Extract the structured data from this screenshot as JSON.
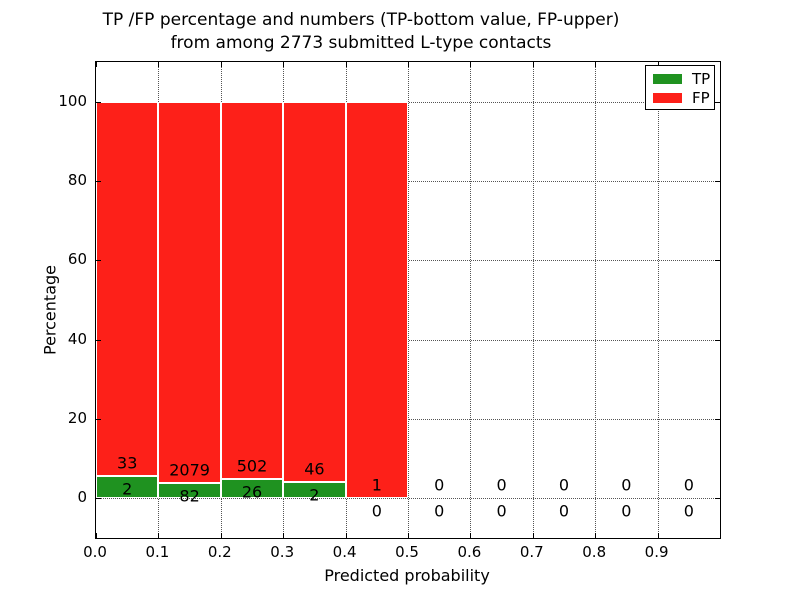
{
  "figure": {
    "title_line1": "TP /FP percentage and numbers (TP-bottom value, FP-upper)",
    "title_line2": "from among 2773 submitted L-type contacts",
    "xlabel": "Predicted probability",
    "ylabel": "Percentage"
  },
  "legend": {
    "items": [
      {
        "label": "TP",
        "color": "#1f9220"
      },
      {
        "label": "FP",
        "color": "#fd2019"
      }
    ]
  },
  "chart_data": {
    "type": "bar",
    "stacked": true,
    "normalized_to_percent": true,
    "title": "TP /FP percentage and numbers (TP-bottom value, FP-upper) from among 2773 submitted L-type contacts",
    "xlabel": "Predicted probability",
    "ylabel": "Percentage",
    "total_contacts": 2773,
    "bin_width": 0.1,
    "bin_starts": [
      0.0,
      0.1,
      0.2,
      0.3,
      0.4,
      0.5,
      0.6,
      0.7,
      0.8,
      0.9
    ],
    "series": [
      {
        "name": "TP",
        "color": "#1f9220",
        "counts": [
          2,
          82,
          26,
          2,
          0,
          0,
          0,
          0,
          0,
          0
        ]
      },
      {
        "name": "FP",
        "color": "#fd2019",
        "counts": [
          33,
          2079,
          502,
          46,
          1,
          0,
          0,
          0,
          0,
          0
        ]
      }
    ],
    "x_ticks": [
      "0.0",
      "0.1",
      "0.2",
      "0.3",
      "0.4",
      "0.5",
      "0.6",
      "0.7",
      "0.8",
      "0.9"
    ],
    "y_ticks": [
      0,
      20,
      40,
      60,
      80,
      100
    ],
    "xlim": [
      0.0,
      1.0
    ],
    "ylim": [
      -10,
      110
    ],
    "grid": "dotted",
    "legend_position": "upper right",
    "annotation_note": "upper number = FP count, lower number = TP count, per bin"
  }
}
